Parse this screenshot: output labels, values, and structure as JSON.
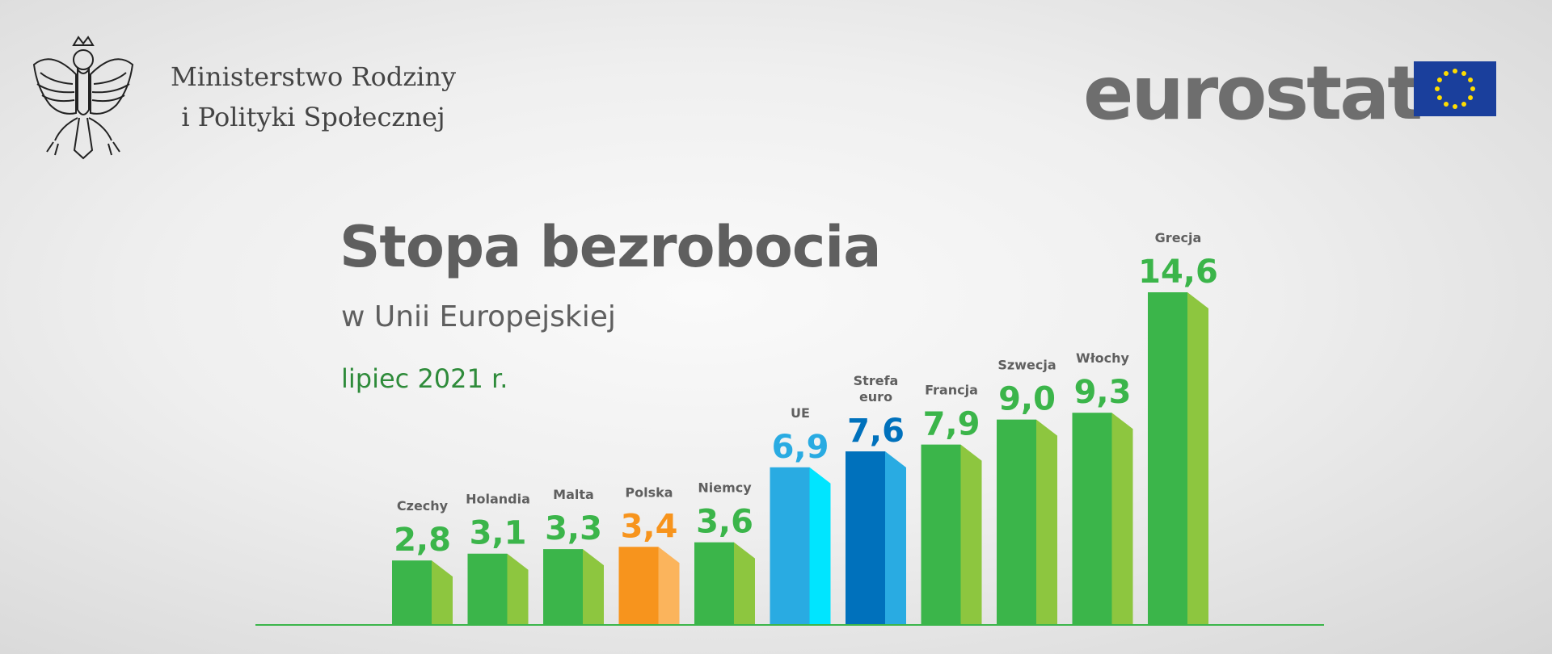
{
  "header": {
    "ministry_line1": "Ministerstwo Rodziny",
    "ministry_line2": "i Polityki Społecznej",
    "eurostat_logo": "eurostat",
    "emblem_icon": "polish-eagle-emblem",
    "flag_icon": "eu-flag"
  },
  "chart_data": {
    "type": "bar",
    "title": "Stopa bezrobocia",
    "subtitle": "w Unii Europejskiej",
    "period": "lipiec 2021 r.",
    "categories": [
      "Czechy",
      "Holandia",
      "Malta",
      "Polska",
      "Niemcy",
      "UE",
      "Strefa euro",
      "Francja",
      "Szwecja",
      "Włochy",
      "Grecja"
    ],
    "values": [
      2.8,
      3.1,
      3.3,
      3.4,
      3.6,
      6.9,
      7.6,
      7.9,
      9.0,
      9.3,
      14.6
    ],
    "value_labels": [
      "2,8",
      "3,1",
      "3,3",
      "3,4",
      "3,6",
      "6,9",
      "7,6",
      "7,9",
      "9,0",
      "9,3",
      "14,6"
    ],
    "ylim": [
      0,
      14.6
    ],
    "grid": false,
    "colors": {
      "default": [
        "#3bb54a",
        "#8dc63f"
      ],
      "Polska": [
        "#f7941d",
        "#fbb45c"
      ],
      "UE": [
        "#29abe2",
        "#00e5ff"
      ],
      "Strefa euro": [
        "#0071bc",
        "#29abe2"
      ]
    },
    "value_colors": {
      "default": "#3bb54a",
      "Polska": "#f7941d",
      "UE": "#29abe2",
      "Strefa euro": "#0071bc"
    }
  }
}
